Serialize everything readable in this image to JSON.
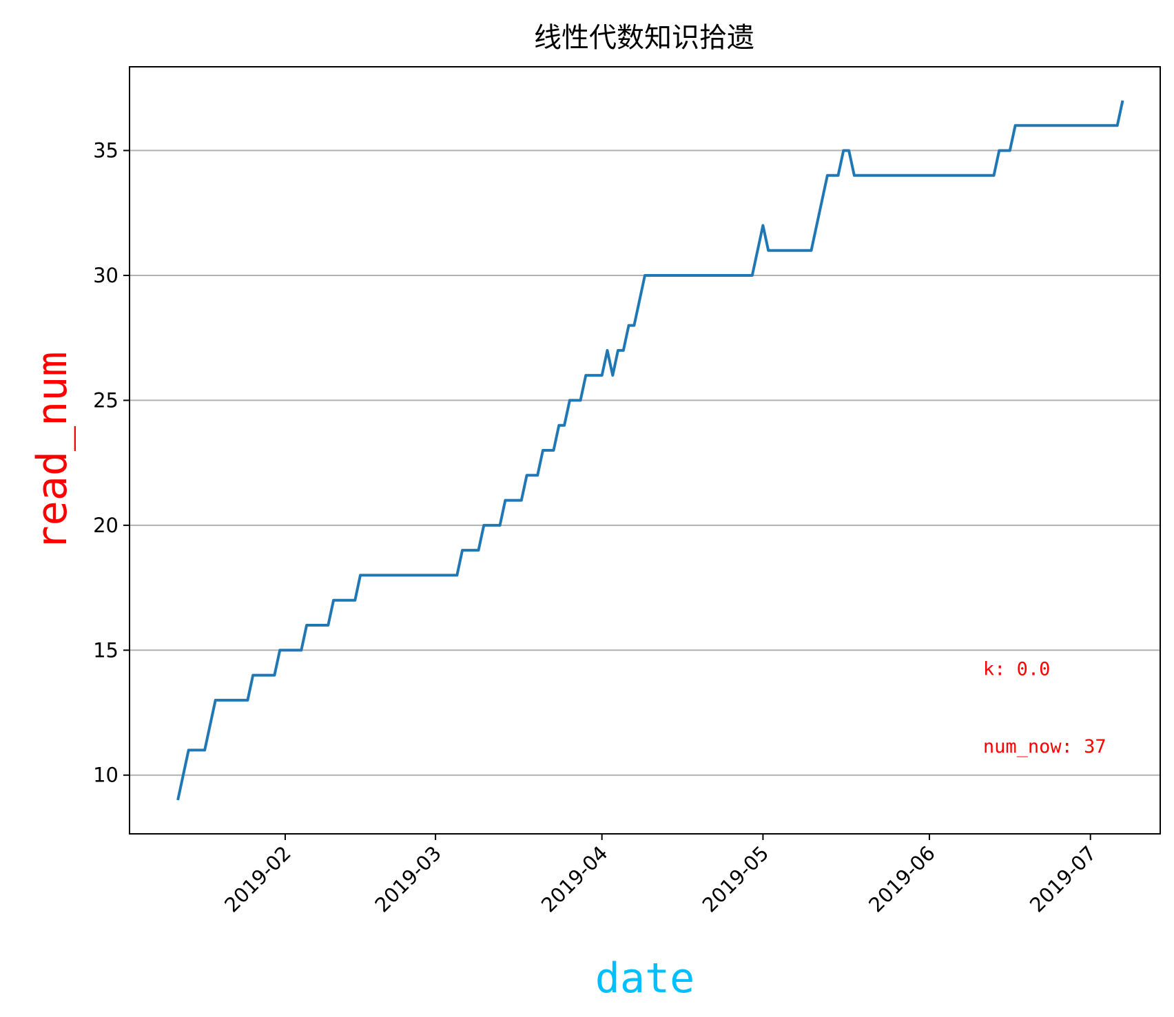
{
  "chart_data": {
    "type": "line",
    "title": "线性代数知识拾遗",
    "xlabel": "date",
    "ylabel": "read_num",
    "xlabel_color": "#00bfff",
    "ylabel_color": "#ff0000",
    "line_color": "#1f77b4",
    "grid": "y-only",
    "xlim": [
      "2019-01-03",
      "2019-07-14"
    ],
    "ylim": [
      7.65,
      38.35
    ],
    "x_ticks": [
      "2019-02-01",
      "2019-03-01",
      "2019-04-01",
      "2019-05-01",
      "2019-06-01",
      "2019-07-01"
    ],
    "x_tick_labels": [
      "2019-02",
      "2019-03",
      "2019-04",
      "2019-05",
      "2019-06",
      "2019-07"
    ],
    "y_ticks": [
      10,
      15,
      20,
      25,
      30,
      35
    ],
    "y_tick_labels": [
      "10",
      "15",
      "20",
      "25",
      "30",
      "35"
    ],
    "annotations": [
      {
        "text": "k: 0.0",
        "x": "2019-06-11",
        "y": 14.0,
        "color": "#ff0000"
      },
      {
        "text": "num_now: 37",
        "x": "2019-06-11",
        "y": 10.9,
        "color": "#ff0000"
      }
    ],
    "series": [
      {
        "x": [
          "2019-01-12",
          "2019-01-14",
          "2019-01-17",
          "2019-01-19",
          "2019-01-25",
          "2019-01-26",
          "2019-01-30",
          "2019-01-31",
          "2019-02-04",
          "2019-02-05",
          "2019-02-09",
          "2019-02-10",
          "2019-02-14",
          "2019-02-15",
          "2019-03-05",
          "2019-03-06",
          "2019-03-09",
          "2019-03-10",
          "2019-03-13",
          "2019-03-14",
          "2019-03-17",
          "2019-03-18",
          "2019-03-20",
          "2019-03-21",
          "2019-03-23",
          "2019-03-24",
          "2019-03-25",
          "2019-03-26",
          "2019-03-28",
          "2019-03-29",
          "2019-04-01",
          "2019-04-02",
          "2019-04-03",
          "2019-04-04",
          "2019-04-05",
          "2019-04-06",
          "2019-04-07",
          "2019-04-09",
          "2019-04-29",
          "2019-05-01",
          "2019-05-02",
          "2019-05-10",
          "2019-05-13",
          "2019-05-15",
          "2019-05-16",
          "2019-05-17",
          "2019-05-18",
          "2019-06-13",
          "2019-06-14",
          "2019-06-16",
          "2019-06-17",
          "2019-07-06",
          "2019-07-07"
        ],
        "values": [
          9,
          11,
          11,
          13,
          13,
          14,
          14,
          15,
          15,
          16,
          16,
          17,
          17,
          18,
          18,
          19,
          19,
          20,
          20,
          21,
          21,
          22,
          22,
          23,
          23,
          24,
          24,
          25,
          25,
          26,
          26,
          27,
          26,
          27,
          27,
          28,
          28,
          30,
          30,
          32,
          31,
          31,
          34,
          34,
          35,
          35,
          34,
          34,
          35,
          35,
          36,
          36,
          37
        ]
      }
    ]
  }
}
